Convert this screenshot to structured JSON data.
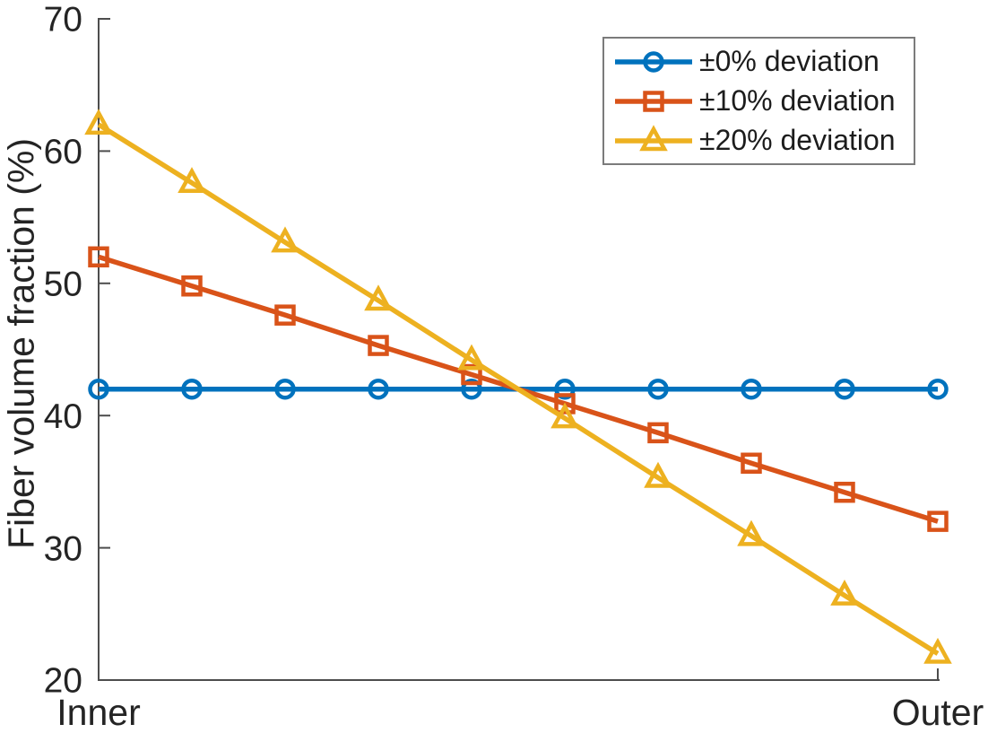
{
  "figure": {
    "background": "#ffffff",
    "axis_color": "#4d4d4d",
    "text_color": "#242424",
    "legend_border_color": "#7b7b7b"
  },
  "chart_data": {
    "type": "line",
    "title": "",
    "xlabel": "",
    "ylabel": "Fiber volume fraction (%)",
    "x_tick_labels": [
      "Inner",
      "Outer"
    ],
    "y_ticks": [
      20,
      30,
      40,
      50,
      60,
      70
    ],
    "ylim": [
      20,
      70
    ],
    "n_points": 10,
    "grid": false,
    "legend_position": "top-right",
    "series": [
      {
        "name": "±0% deviation",
        "color": "#0072BD",
        "marker": "circle",
        "values": [
          42,
          42,
          42,
          42,
          42,
          42,
          42,
          42,
          42,
          42
        ]
      },
      {
        "name": "±10% deviation",
        "color": "#D95319",
        "marker": "square",
        "values": [
          52,
          49.8,
          47.6,
          45.3,
          43.1,
          40.9,
          38.7,
          36.4,
          34.2,
          32
        ]
      },
      {
        "name": "±20% deviation",
        "color": "#EDB120",
        "marker": "triangle",
        "values": [
          62,
          57.6,
          53.1,
          48.7,
          44.2,
          39.8,
          35.3,
          30.9,
          26.4,
          22
        ]
      }
    ]
  }
}
